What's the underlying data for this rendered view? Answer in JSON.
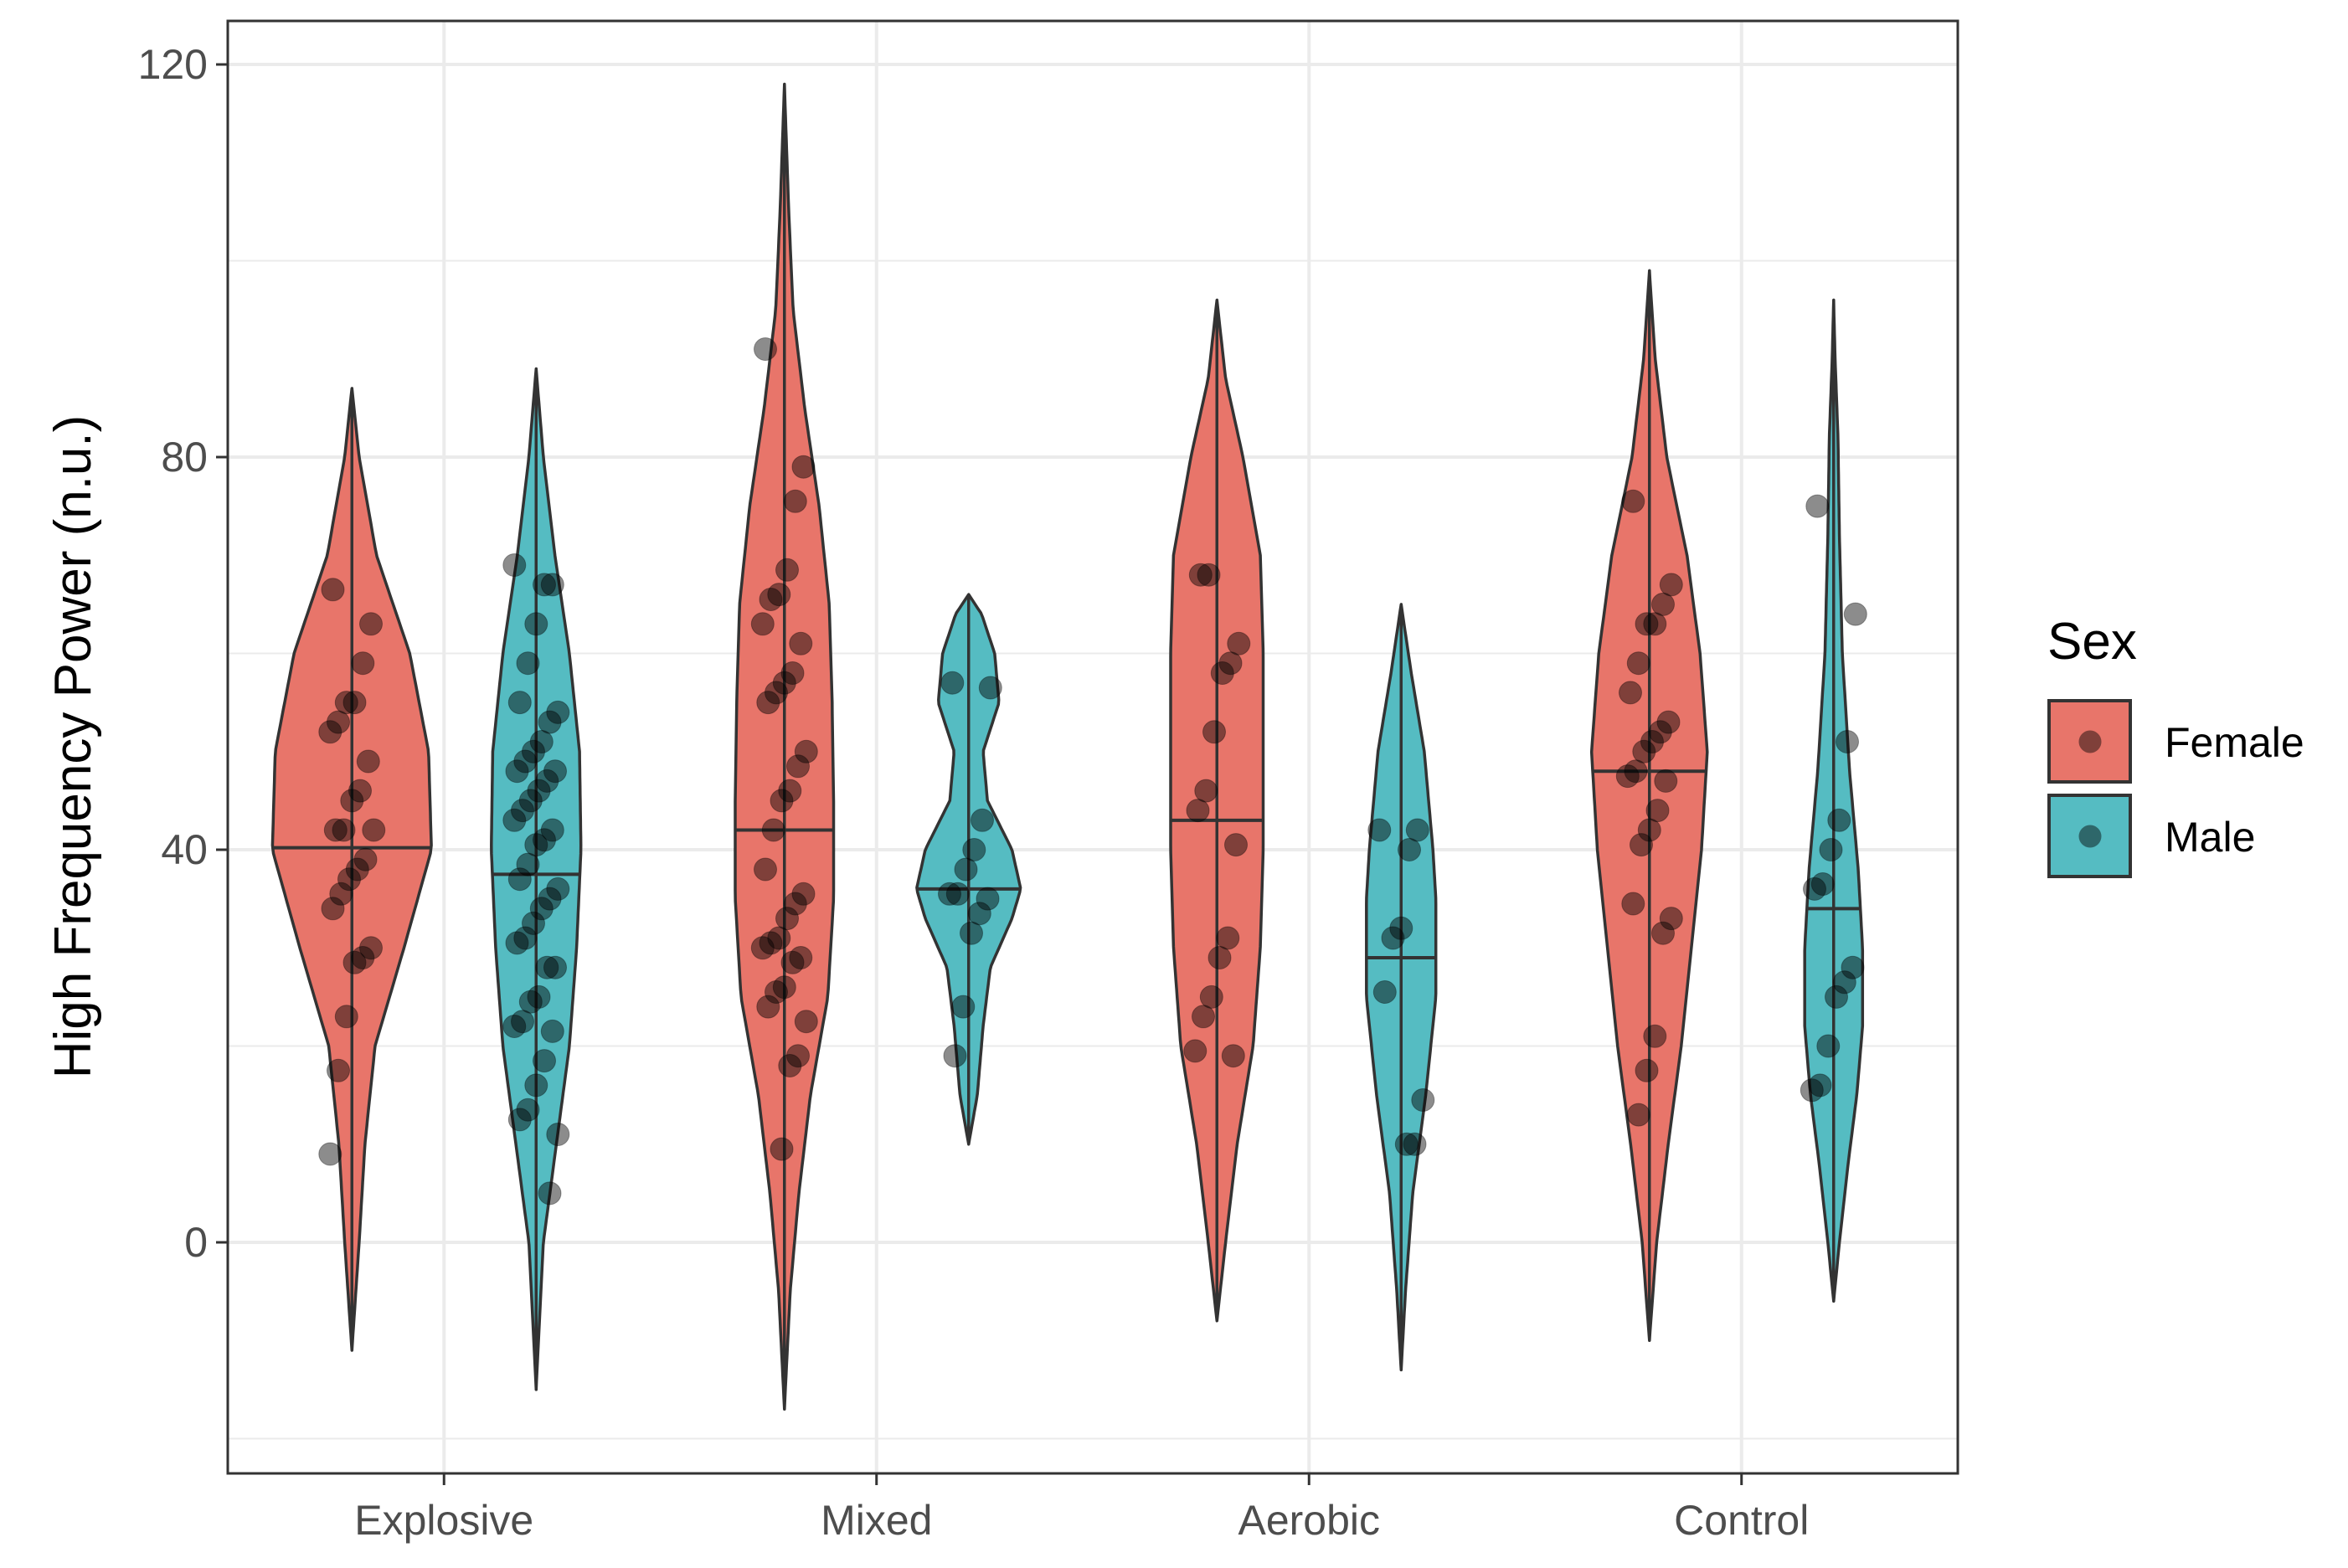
{
  "chart_data": {
    "type": "violin",
    "title": "",
    "xlabel": "",
    "ylabel": "High Frequency Power (n.u.)",
    "ylim": [
      -20,
      125
    ],
    "yticks": [
      0,
      40,
      80,
      120
    ],
    "categories": [
      "Explosive",
      "Mixed",
      "Aerobic",
      "Control"
    ],
    "legend": {
      "title": "Sex",
      "position": "right",
      "entries": [
        {
          "label": "Female",
          "color": "#E8756A"
        },
        {
          "label": "Male",
          "color": "#55BCC2"
        }
      ]
    },
    "grid": true,
    "series": [
      {
        "name": "Female",
        "color": "#E8756A",
        "groups": [
          {
            "category": "Explosive",
            "median": 40.2,
            "profile": [
              [
                -11,
                0
              ],
              [
                0,
                0.5
              ],
              [
                10,
                0.9
              ],
              [
                20,
                1.6
              ],
              [
                30,
                3.6
              ],
              [
                40,
                5.5
              ],
              [
                50,
                5.3
              ],
              [
                60,
                4.0
              ],
              [
                70,
                1.7
              ],
              [
                80,
                0.5
              ],
              [
                87,
                0
              ]
            ],
            "points": [
              9,
              17.5,
              23,
              28.5,
              29,
              30,
              34,
              35.5,
              37,
              38,
              39,
              42,
              42,
              42,
              45,
              46,
              49,
              52,
              53,
              55,
              55,
              59,
              63,
              66.5
            ]
          },
          {
            "category": "Mixed",
            "median": 42,
            "profile": [
              [
                -17,
                0
              ],
              [
                -5,
                0.4
              ],
              [
                5,
                1.0
              ],
              [
                15,
                1.8
              ],
              [
                25,
                3.0
              ],
              [
                35,
                3.4
              ],
              [
                45,
                3.4
              ],
              [
                55,
                3.3
              ],
              [
                65,
                3.1
              ],
              [
                75,
                2.4
              ],
              [
                85,
                1.4
              ],
              [
                95,
                0.6
              ],
              [
                105,
                0.3
              ],
              [
                118,
                0
              ]
            ],
            "points": [
              9.5,
              18,
              19,
              22.5,
              24,
              25.5,
              26,
              28.5,
              29,
              30,
              30.5,
              31,
              33,
              34.5,
              35.5,
              38,
              42,
              45,
              46,
              48.5,
              50,
              55,
              56,
              57,
              58,
              61,
              63,
              65.5,
              66,
              68.5,
              75.5,
              79,
              91
            ]
          },
          {
            "category": "Aerobic",
            "median": 43,
            "profile": [
              [
                -8,
                0
              ],
              [
                0,
                0.6
              ],
              [
                10,
                1.4
              ],
              [
                20,
                2.5
              ],
              [
                30,
                3.0
              ],
              [
                40,
                3.2
              ],
              [
                50,
                3.2
              ],
              [
                60,
                3.2
              ],
              [
                70,
                3.0
              ],
              [
                80,
                1.8
              ],
              [
                88,
                0.6
              ],
              [
                96,
                0
              ]
            ],
            "points": [
              19,
              19.5,
              23,
              25,
              29,
              31,
              40.5,
              44,
              46,
              52,
              58,
              59,
              61,
              68,
              68
            ]
          },
          {
            "category": "Control",
            "median": 48,
            "profile": [
              [
                -10,
                0
              ],
              [
                0,
                0.5
              ],
              [
                10,
                1.3
              ],
              [
                20,
                2.2
              ],
              [
                30,
                2.9
              ],
              [
                40,
                3.6
              ],
              [
                50,
                4.0
              ],
              [
                60,
                3.5
              ],
              [
                70,
                2.6
              ],
              [
                80,
                1.2
              ],
              [
                90,
                0.4
              ],
              [
                99,
                0
              ]
            ],
            "points": [
              13,
              17.5,
              21,
              31.5,
              33,
              34.5,
              40.5,
              42,
              44,
              47,
              47.5,
              48,
              50,
              51,
              52,
              53,
              56,
              59,
              63,
              63,
              65,
              67,
              75.5
            ]
          }
        ]
      },
      {
        "name": "Male",
        "color": "#55BCC2",
        "groups": [
          {
            "category": "Explosive",
            "median": 37.5,
            "profile": [
              [
                -15,
                0
              ],
              [
                0,
                0.5
              ],
              [
                10,
                1.4
              ],
              [
                20,
                2.3
              ],
              [
                30,
                2.8
              ],
              [
                40,
                3.1
              ],
              [
                50,
                3.0
              ],
              [
                60,
                2.3
              ],
              [
                70,
                1.3
              ],
              [
                80,
                0.5
              ],
              [
                89,
                0
              ]
            ],
            "points": [
              5,
              11,
              12.5,
              13.5,
              16,
              18.5,
              21.5,
              22,
              22.5,
              24.5,
              25,
              28,
              28,
              30.5,
              31,
              32.5,
              34,
              35,
              36,
              37,
              38.5,
              40.5,
              41,
              42,
              43,
              44,
              45,
              46,
              47,
              48,
              48,
              49,
              50,
              51,
              53,
              54,
              55,
              59,
              63,
              67,
              67,
              69
            ]
          },
          {
            "category": "Mixed",
            "median": 36,
            "profile": [
              [
                10,
                0
              ],
              [
                15,
                0.6
              ],
              [
                22,
                1.0
              ],
              [
                28,
                1.5
              ],
              [
                33,
                3.0
              ],
              [
                36,
                3.6
              ],
              [
                40,
                3.0
              ],
              [
                45,
                1.3
              ],
              [
                50,
                1.0
              ],
              [
                55,
                2.1
              ],
              [
                60,
                1.8
              ],
              [
                64,
                0.9
              ],
              [
                66,
                0
              ]
            ],
            "points": [
              19,
              24,
              31.5,
              33.5,
              35,
              35.5,
              35.5,
              38,
              40,
              43,
              56.5,
              57
            ]
          },
          {
            "category": "Aerobic",
            "median": 29,
            "profile": [
              [
                -13,
                0
              ],
              [
                -5,
                0.3
              ],
              [
                5,
                0.8
              ],
              [
                15,
                1.7
              ],
              [
                25,
                2.4
              ],
              [
                35,
                2.4
              ],
              [
                40,
                2.2
              ],
              [
                50,
                1.6
              ],
              [
                58,
                0.7
              ],
              [
                65,
                0
              ]
            ],
            "points": [
              10,
              10,
              14.5,
              25.5,
              31,
              32,
              40,
              42,
              42
            ]
          },
          {
            "category": "Control",
            "median": 34,
            "profile": [
              [
                -6,
                0
              ],
              [
                0,
                0.4
              ],
              [
                8,
                1.0
              ],
              [
                15,
                1.6
              ],
              [
                22,
                2.0
              ],
              [
                30,
                2.0
              ],
              [
                38,
                1.7
              ],
              [
                48,
                1.1
              ],
              [
                60,
                0.6
              ],
              [
                72,
                0.4
              ],
              [
                82,
                0.3
              ],
              [
                90,
                0.1
              ],
              [
                96,
                0
              ]
            ],
            "points": [
              15.5,
              16,
              20,
              25,
              26.5,
              28,
              36,
              36.5,
              40,
              43,
              51,
              64,
              75
            ]
          }
        ]
      }
    ]
  }
}
